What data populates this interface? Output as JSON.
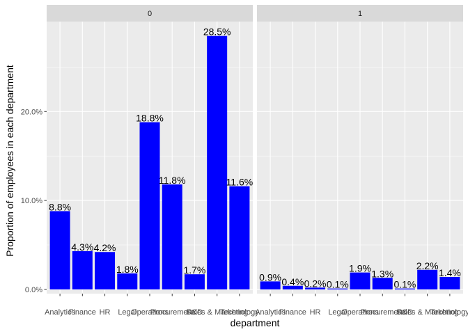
{
  "chart_data": {
    "type": "bar",
    "xlabel": "department",
    "ylabel": "Proportion of employees in each department",
    "ylim": [
      0,
      0.3
    ],
    "y_ticks": [
      0,
      0.1,
      0.2
    ],
    "y_tick_labels": [
      "0.0%",
      "10.0%",
      "20.0%"
    ],
    "categories": [
      "Analytics",
      "Finance",
      "HR",
      "Legal",
      "Operations",
      "Procurement",
      "R&D",
      "Sales & Marketing",
      "Technology"
    ],
    "facets": [
      {
        "name": "0",
        "values": [
          0.088,
          0.043,
          0.042,
          0.018,
          0.188,
          0.118,
          0.017,
          0.285,
          0.116
        ],
        "labels": [
          "8.8%",
          "4.3%",
          "4.2%",
          "1.8%",
          "18.8%",
          "11.8%",
          "1.7%",
          "28.5%",
          "11.6%"
        ]
      },
      {
        "name": "1",
        "values": [
          0.009,
          0.004,
          0.002,
          0.001,
          0.019,
          0.013,
          0.001,
          0.022,
          0.014
        ],
        "labels": [
          "0.9%",
          "0.4%",
          "0.2%",
          "0.1%",
          "1.9%",
          "1.3%",
          "0.1%",
          "2.2%",
          "1.4%"
        ]
      }
    ],
    "bar_color": "#0000FF",
    "panel_background": "#EBEBEB",
    "strip_background": "#D9D9D9",
    "grid": true,
    "legend": "none"
  }
}
